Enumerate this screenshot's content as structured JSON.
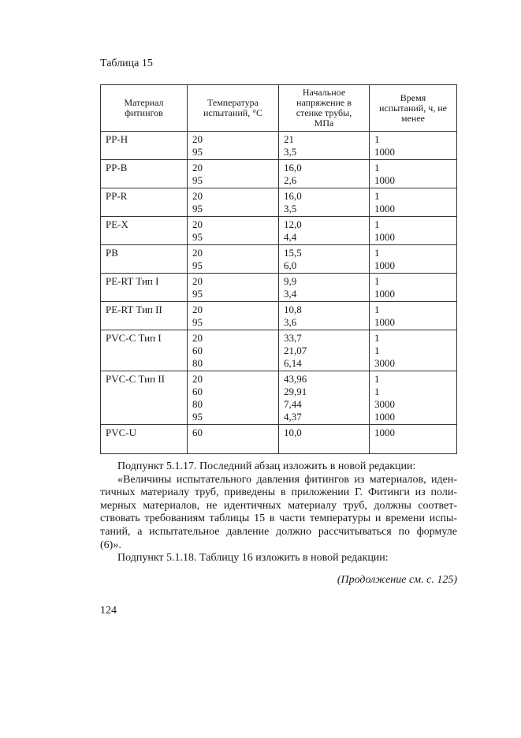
{
  "caption": "Таблица 15",
  "table": {
    "headers": [
      "Материал фитингов",
      "Температура испытаний, °С",
      "Начальное напряжение в стенке трубы, МПа",
      "Время испытаний, ч, не менее"
    ],
    "rows": [
      {
        "material": "PP-H",
        "temps": [
          "20",
          "95"
        ],
        "stress": [
          "21",
          "3,5"
        ],
        "time": [
          "1",
          "1000"
        ]
      },
      {
        "material": "PP-B",
        "temps": [
          "20",
          "95"
        ],
        "stress": [
          "16,0",
          "2,6"
        ],
        "time": [
          "1",
          "1000"
        ]
      },
      {
        "material": "PP-R",
        "temps": [
          "20",
          "95"
        ],
        "stress": [
          "16,0",
          "3,5"
        ],
        "time": [
          "1",
          "1000"
        ]
      },
      {
        "material": "PE-X",
        "temps": [
          "20",
          "95"
        ],
        "stress": [
          "12,0",
          "4,4"
        ],
        "time": [
          "1",
          "1000"
        ]
      },
      {
        "material": "PB",
        "temps": [
          "20",
          "95"
        ],
        "stress": [
          "15,5",
          "6,0"
        ],
        "time": [
          "1",
          "1000"
        ]
      },
      {
        "material": "PE-RT Тип I",
        "temps": [
          "20",
          "95"
        ],
        "stress": [
          "9,9",
          "3,4"
        ],
        "time": [
          "1",
          "1000"
        ]
      },
      {
        "material": "PE-RT Тип II",
        "temps": [
          "20",
          "95"
        ],
        "stress": [
          "10,8",
          "3,6"
        ],
        "time": [
          "1",
          "1000"
        ]
      },
      {
        "material": "PVC-C Тип I",
        "temps": [
          "20",
          "60",
          "80"
        ],
        "stress": [
          "33,7",
          "21,07",
          "6,14"
        ],
        "time": [
          "1",
          "1",
          "3000"
        ]
      },
      {
        "material": "PVC-C Тип II",
        "temps": [
          "20",
          "60",
          "80",
          "95"
        ],
        "stress": [
          "43,96",
          "29,91",
          "7,44",
          "4,37"
        ],
        "time": [
          "1",
          "1",
          "3000",
          "1000"
        ]
      },
      {
        "material": "PVC-U",
        "temps": [
          "60"
        ],
        "stress": [
          "10,0"
        ],
        "time": [
          "1000"
        ]
      }
    ]
  },
  "body": {
    "p1": "Подпункт 5.1.17. Последний абзац изложить в новой редакции:",
    "p2_lines": [
      "«Величины испытательного давления фитингов из материалов, иден-",
      "тичных материалу труб, приведены в приложении Г. Фитинги из поли-",
      "мерных материалов, не идентичных материалу труб, должны соответ-",
      "ствовать требованиям таблицы 15 в части температуры и времени испы-",
      "таний, а испытательное давление должно рассчитываться по формуле",
      "(6)»."
    ],
    "p3": "Подпункт 5.1.18. Таблицу 16 изложить в новой редакции:"
  },
  "continuation": "(Продолжение см. с. 125)",
  "page_number": "124"
}
